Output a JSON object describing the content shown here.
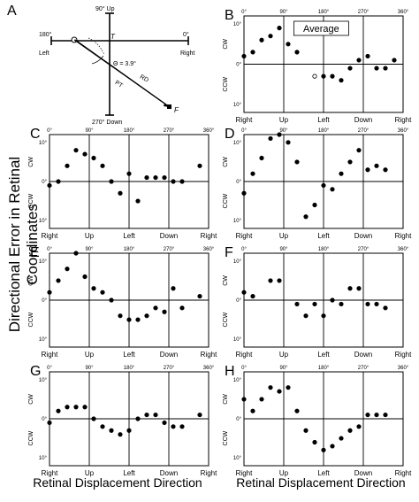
{
  "figure": {
    "y_label": "Directional Error in Retinal Coordinates",
    "x_label": "Retinal Displacement Direction",
    "x_label_right": "Retinal Displacement Direction"
  },
  "panel_a": {
    "letter": "A",
    "label_top": "90° Up",
    "label_left_deg": "180°",
    "label_left": "Left",
    "label_right_deg": "0°",
    "label_right": "Right",
    "label_bottom": "270° Down",
    "t": "T",
    "theta": "Θ = 3.9°",
    "rd": "RD",
    "pt": "PT",
    "f": "F"
  },
  "chart_data": [
    {
      "panel": "B",
      "type": "scatter",
      "title": "Average",
      "top_ticks": [
        "0°",
        "90°",
        "180°",
        "270°",
        "360°"
      ],
      "bottom_ticks": [
        "Right",
        "Up",
        "Left",
        "Down",
        "Right"
      ],
      "y_ticks": [
        "10°",
        "0°",
        "10°"
      ],
      "y_labels": [
        "CW",
        "CCW"
      ],
      "xlim": [
        0,
        360
      ],
      "ylim": [
        -12,
        12
      ],
      "x": [
        0,
        20,
        40,
        60,
        80,
        100,
        120,
        160,
        180,
        200,
        220,
        240,
        260,
        280,
        300,
        320,
        340
      ],
      "y": [
        2,
        3,
        6,
        7,
        9,
        5,
        3,
        -3,
        -3,
        -3,
        -4,
        -1,
        1,
        2,
        -1,
        -1,
        1
      ],
      "open_points": [
        {
          "x": 160,
          "y": -3
        }
      ]
    },
    {
      "panel": "C",
      "type": "scatter",
      "top_ticks": [
        "0°",
        "90°",
        "180°",
        "270°",
        "360°"
      ],
      "bottom_ticks": [
        "Right",
        "Up",
        "Left",
        "Down",
        "Right"
      ],
      "y_ticks": [
        "10°",
        "0°",
        "10°"
      ],
      "y_labels": [
        "CW",
        "CCW"
      ],
      "xlim": [
        0,
        360
      ],
      "ylim": [
        -12,
        12
      ],
      "x": [
        0,
        20,
        40,
        60,
        80,
        100,
        120,
        140,
        160,
        180,
        200,
        220,
        240,
        260,
        280,
        300,
        340
      ],
      "y": [
        -1,
        0,
        4,
        8,
        7,
        6,
        4,
        0,
        -3,
        2,
        -5,
        1,
        1,
        1,
        0,
        0,
        4
      ]
    },
    {
      "panel": "D",
      "type": "scatter",
      "top_ticks": [
        "0°",
        "90°",
        "180°",
        "270°",
        "360°"
      ],
      "bottom_ticks": [
        "Right",
        "Up",
        "Left",
        "Down",
        "Right"
      ],
      "y_ticks": [
        "10°",
        "0°",
        "10°"
      ],
      "y_labels": [
        "CW",
        "CCW"
      ],
      "xlim": [
        0,
        360
      ],
      "ylim": [
        -12,
        12
      ],
      "x": [
        0,
        20,
        40,
        60,
        80,
        100,
        120,
        140,
        160,
        180,
        200,
        220,
        240,
        260,
        280,
        300,
        320
      ],
      "y": [
        -3,
        2,
        6,
        11,
        12,
        10,
        5,
        -9,
        -6,
        -1,
        -2,
        2,
        5,
        8,
        3,
        4,
        3
      ]
    },
    {
      "panel": "E",
      "type": "scatter",
      "top_ticks": [
        "0°",
        "90°",
        "180°",
        "270°",
        "360°"
      ],
      "bottom_ticks": [
        "Right",
        "Up",
        "Left",
        "Down",
        "Right"
      ],
      "y_ticks": [
        "10°",
        "0°",
        "10°"
      ],
      "y_labels": [
        "CW",
        "CCW"
      ],
      "xlim": [
        0,
        360
      ],
      "ylim": [
        -12,
        12
      ],
      "x": [
        0,
        20,
        40,
        60,
        80,
        100,
        120,
        140,
        160,
        180,
        200,
        220,
        240,
        260,
        280,
        300,
        340
      ],
      "y": [
        2,
        5,
        8,
        12,
        6,
        3,
        2,
        0,
        -4,
        -5,
        -5,
        -4,
        -2,
        -3,
        3,
        -2,
        1
      ]
    },
    {
      "panel": "F",
      "type": "scatter",
      "top_ticks": [
        "0°",
        "90°",
        "180°",
        "270°",
        "360°"
      ],
      "bottom_ticks": [
        "Right",
        "Up",
        "Left",
        "Down",
        "Right"
      ],
      "y_ticks": [
        "10°",
        "0°",
        "10°"
      ],
      "y_labels": [
        "CW",
        "CCW"
      ],
      "xlim": [
        0,
        360
      ],
      "ylim": [
        -12,
        12
      ],
      "x": [
        0,
        20,
        60,
        80,
        120,
        140,
        160,
        180,
        200,
        220,
        240,
        260,
        280,
        300,
        320
      ],
      "y": [
        2,
        1,
        5,
        5,
        -1,
        -4,
        -1,
        -4,
        0,
        -1,
        3,
        3,
        -1,
        -1,
        -2
      ]
    },
    {
      "panel": "G",
      "type": "scatter",
      "top_ticks": [
        "0°",
        "90°",
        "180°",
        "270°",
        "360°"
      ],
      "bottom_ticks": [
        "Right",
        "Up",
        "Left",
        "Down",
        "Right"
      ],
      "y_ticks": [
        "10°",
        "0°",
        "10°"
      ],
      "y_labels": [
        "CW",
        "CCW"
      ],
      "xlim": [
        0,
        360
      ],
      "ylim": [
        -12,
        12
      ],
      "x": [
        0,
        20,
        40,
        60,
        80,
        100,
        120,
        140,
        160,
        180,
        200,
        220,
        240,
        260,
        280,
        300,
        340
      ],
      "y": [
        -1,
        2,
        3,
        3,
        3,
        0,
        -2,
        -3,
        -4,
        -3,
        0,
        1,
        1,
        -1,
        -2,
        -2,
        1
      ]
    },
    {
      "panel": "H",
      "type": "scatter",
      "top_ticks": [
        "0°",
        "90°",
        "180°",
        "270°",
        "360°"
      ],
      "bottom_ticks": [
        "Right",
        "Up",
        "Left",
        "Down",
        "Right"
      ],
      "y_ticks": [
        "10°",
        "0°",
        "10°"
      ],
      "y_labels": [
        "CW",
        "CCW"
      ],
      "xlim": [
        0,
        360
      ],
      "ylim": [
        -12,
        12
      ],
      "x": [
        0,
        20,
        40,
        60,
        80,
        100,
        120,
        140,
        160,
        180,
        200,
        220,
        240,
        260,
        280,
        300,
        320
      ],
      "y": [
        5,
        2,
        5,
        8,
        7,
        8,
        2,
        -3,
        -6,
        -8,
        -7,
        -5,
        -3,
        -2,
        1,
        1,
        1
      ]
    }
  ]
}
